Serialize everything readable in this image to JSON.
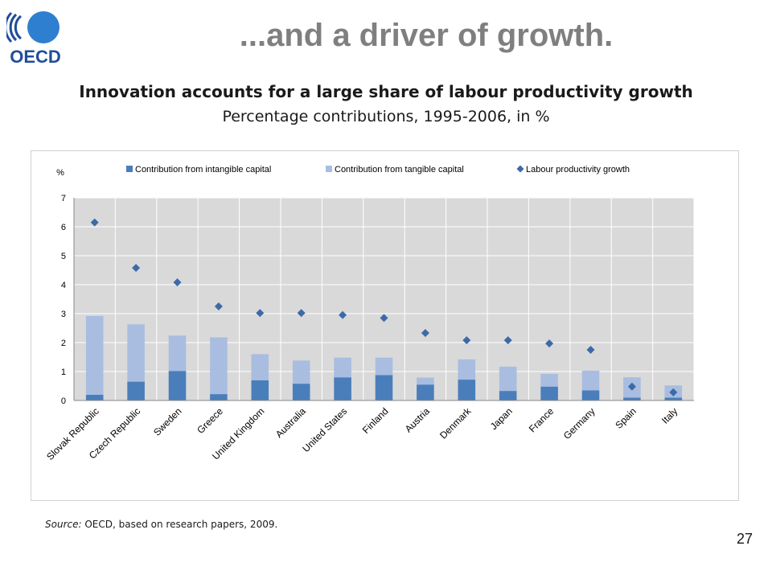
{
  "logo": {
    "text": "OECD"
  },
  "slide": {
    "title": "...and a driver of growth.",
    "page_number": "27"
  },
  "source": {
    "label": "Source:",
    "text": " OECD, based on research papers, 2009."
  },
  "chart_data": {
    "type": "bar",
    "title": "Innovation accounts for a large share of labour productivity growth",
    "subtitle": "Percentage contributions, 1995-2006, in %",
    "ylabel": "%",
    "ylim": [
      0,
      7
    ],
    "yticks": [
      "0",
      "1",
      "2",
      "3",
      "4",
      "5",
      "6",
      "7"
    ],
    "grid": true,
    "legend_position": "top",
    "stacked": true,
    "categories": [
      "Slovak Republic",
      "Czech Republic",
      "Sweden",
      "Greece",
      "United Kingdom",
      "Australia",
      "United States",
      "Finland",
      "Austria",
      "Denmark",
      "Japan",
      "France",
      "Germany",
      "Spain",
      "Italy"
    ],
    "series": [
      {
        "name": "Contribution from intangible capital",
        "kind": "bar",
        "color": "#4a7ebb",
        "values": [
          0.2,
          0.65,
          1.02,
          0.22,
          0.7,
          0.58,
          0.8,
          0.88,
          0.55,
          0.72,
          0.33,
          0.48,
          0.35,
          0.1,
          0.1
        ]
      },
      {
        "name": "Contribution from tangible capital",
        "kind": "bar",
        "color": "#a9bde0",
        "values": [
          2.72,
          1.98,
          1.22,
          1.96,
          0.9,
          0.8,
          0.68,
          0.6,
          0.24,
          0.7,
          0.84,
          0.44,
          0.68,
          0.7,
          0.42
        ]
      },
      {
        "name": "Labour productivity growth",
        "kind": "marker",
        "color": "#3c6aa8",
        "values": [
          6.15,
          4.58,
          4.08,
          3.25,
          3.02,
          3.02,
          2.95,
          2.85,
          2.33,
          2.08,
          2.08,
          1.97,
          1.75,
          0.48,
          0.28
        ]
      }
    ]
  }
}
